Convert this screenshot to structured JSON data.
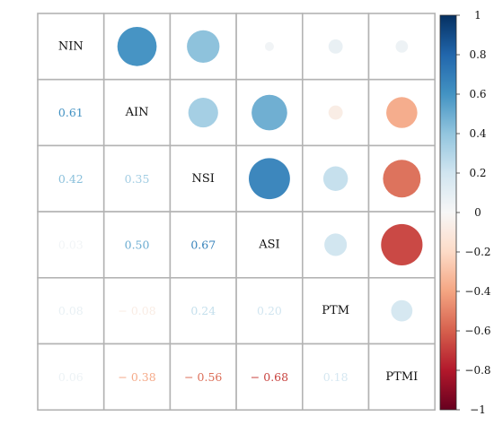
{
  "chart_data": {
    "type": "heatmap",
    "variables": [
      "NIN",
      "AIN",
      "NSI",
      "ASI",
      "PTM",
      "PTMI"
    ],
    "correlation_matrix": [
      [
        1.0,
        0.61,
        0.42,
        0.03,
        0.08,
        0.06
      ],
      [
        0.61,
        1.0,
        0.35,
        0.5,
        -0.08,
        -0.38
      ],
      [
        0.42,
        0.35,
        1.0,
        0.67,
        0.24,
        -0.56
      ],
      [
        0.03,
        0.5,
        0.67,
        1.0,
        0.2,
        -0.68
      ],
      [
        0.08,
        -0.08,
        0.24,
        0.2,
        1.0,
        0.18
      ],
      [
        0.06,
        -0.38,
        -0.56,
        -0.68,
        0.18,
        1.0
      ]
    ],
    "upper_triangle": "circles",
    "lower_triangle": "numbers",
    "diagonal": "variable names",
    "colorbar": {
      "min": -1,
      "max": 1,
      "tick_values": [
        1,
        0.8,
        0.6,
        0.4,
        0.2,
        0,
        -0.2,
        -0.4,
        -0.6,
        -0.8,
        -1
      ],
      "tick_labels": [
        "1",
        "0.8",
        "0.6",
        "0.4",
        "0.2",
        "0",
        "−0.2",
        "−0.4",
        "−0.6",
        "−0.8",
        "−1"
      ],
      "colors": [
        "#67001F",
        "#B2182B",
        "#D6604D",
        "#F4A582",
        "#FDDBC7",
        "#F7F7F7",
        "#D1E5F0",
        "#92C5DE",
        "#4393C3",
        "#2166AC",
        "#053061"
      ]
    },
    "grid": true
  }
}
